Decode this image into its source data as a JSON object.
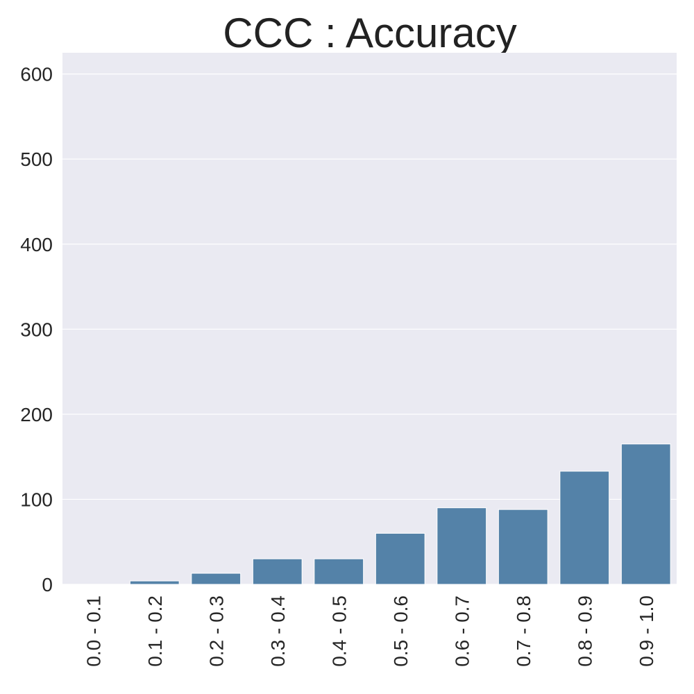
{
  "chart_data": {
    "type": "bar",
    "title": "CCC : Accuracy",
    "xlabel": "",
    "ylabel": "",
    "categories": [
      "0.0 - 0.1",
      "0.1 - 0.2",
      "0.2 - 0.3",
      "0.3 - 0.4",
      "0.4 - 0.5",
      "0.5 - 0.6",
      "0.6 - 0.7",
      "0.7 - 0.8",
      "0.8 - 0.9",
      "0.9 - 1.0"
    ],
    "values": [
      0,
      4,
      13,
      30,
      30,
      60,
      90,
      88,
      133,
      165
    ],
    "ylim": [
      0,
      625
    ],
    "yticks": [
      0,
      100,
      200,
      300,
      400,
      500,
      600
    ],
    "grid": true,
    "colors": {
      "bar": "#5482a8",
      "plot_background": "#eaeaf2",
      "grid": "#ffffff"
    }
  }
}
